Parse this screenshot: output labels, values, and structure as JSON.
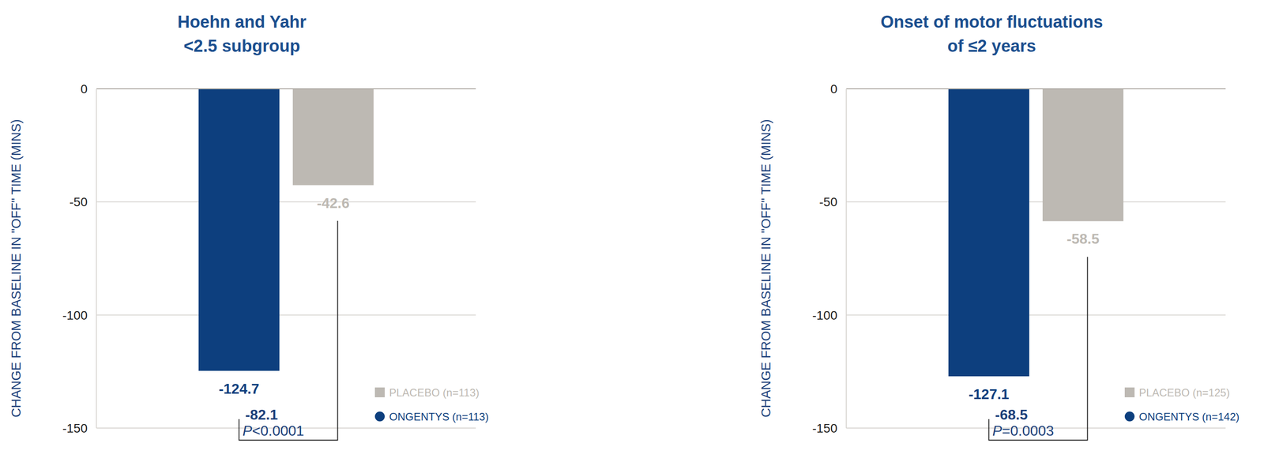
{
  "chart_data": [
    {
      "type": "bar",
      "title": "Hoehn and Yahr\n<2.5 subgroup",
      "y_label": "CHANGE FROM BASELINE IN \"OFF\" TIME (MINS)",
      "categories": [
        null
      ],
      "series": [
        {
          "name": "ONGENTYS (n=113)",
          "color": "#0d3f7e",
          "marker": "circle",
          "values": [
            -124.7
          ]
        },
        {
          "name": "PLACEBO (n=113)",
          "color": "#bdb9b3",
          "marker": "square",
          "values": [
            -42.6
          ]
        }
      ],
      "ylim": [
        -150,
        0
      ],
      "yticks": [
        0,
        -50,
        -100,
        -150
      ],
      "grid": true,
      "data_labels": true,
      "tick_labels": "y",
      "legend": "lower right",
      "difference": -82.1,
      "annotations": [
        "P<0.0001"
      ]
    },
    {
      "type": "bar",
      "title": "Onset of motor fluctuations\nof ≤2 years",
      "y_label": "CHANGE FROM BASELINE IN \"OFF\" TIME (MINS)",
      "categories": [
        null
      ],
      "series": [
        {
          "name": "ONGENTYS (n=142)",
          "color": "#0d3f7e",
          "marker": "circle",
          "values": [
            -127.1
          ]
        },
        {
          "name": "PLACEBO (n=125)",
          "color": "#bdb9b3",
          "marker": "square",
          "values": [
            -58.5
          ]
        }
      ],
      "ylim": [
        -150,
        0
      ],
      "yticks": [
        0,
        -50,
        -100,
        -150
      ],
      "grid": true,
      "data_labels": true,
      "tick_labels": "y",
      "legend": "lower right",
      "difference": -68.5,
      "annotations": [
        "P=0.0003"
      ]
    }
  ]
}
